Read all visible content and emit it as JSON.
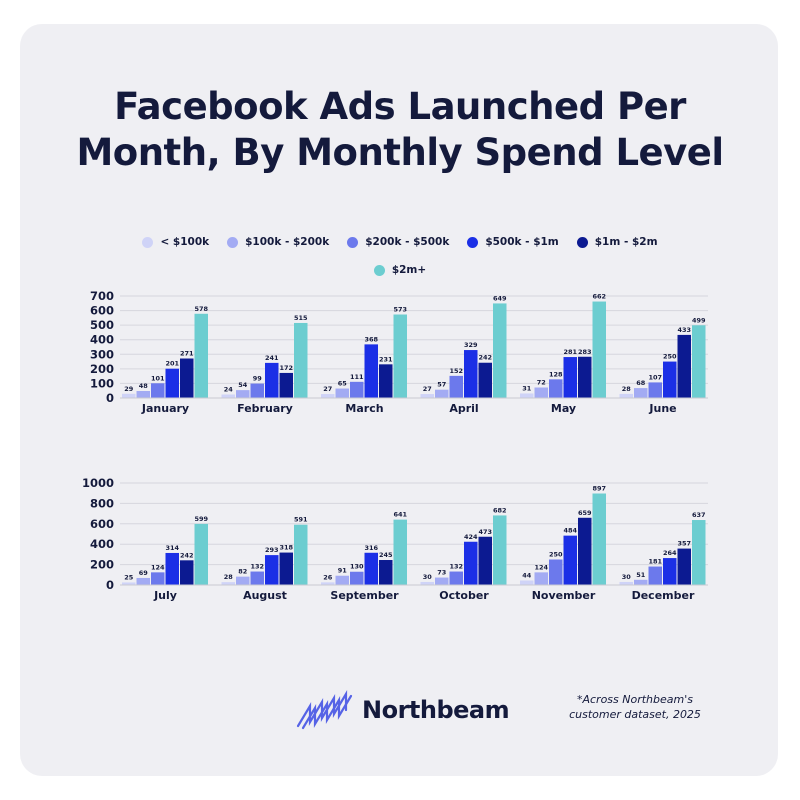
{
  "title_line1": "Facebook Ads Launched Per",
  "title_line2": "Month, By Monthly Spend Level",
  "brand": "Northbeam",
  "footnote_line1": "*Across Northbeam's",
  "footnote_line2": "customer dataset, 2025",
  "chart_data": [
    {
      "type": "bar",
      "title": "Facebook Ads Launched Per Month, By Monthly Spend Level",
      "categories": [
        "January",
        "February",
        "March",
        "April",
        "May",
        "June"
      ],
      "ylim": [
        0,
        700
      ],
      "yticks": [
        0,
        100,
        200,
        300,
        400,
        500,
        600,
        700
      ],
      "grid": true,
      "legend_position": "top-center",
      "series": [
        {
          "name": "< $100k",
          "color": "#cfd3f7",
          "values": [
            29,
            24,
            27,
            27,
            31,
            28
          ]
        },
        {
          "name": "$100k - $200k",
          "color": "#a3abf3",
          "values": [
            48,
            54,
            65,
            57,
            72,
            68
          ]
        },
        {
          "name": "$200k - $500k",
          "color": "#6c79ec",
          "values": [
            101,
            99,
            111,
            152,
            128,
            107
          ]
        },
        {
          "name": "$500k - $1m",
          "color": "#1b2fe6",
          "values": [
            201,
            241,
            368,
            329,
            281,
            250
          ]
        },
        {
          "name": "$1m - $2m",
          "color": "#0c1a91",
          "values": [
            271,
            172,
            231,
            242,
            283,
            433
          ]
        },
        {
          "name": "$2m+",
          "color": "#6ccdd0",
          "values": [
            578,
            515,
            573,
            649,
            662,
            499
          ]
        }
      ]
    },
    {
      "type": "bar",
      "categories": [
        "July",
        "August",
        "September",
        "October",
        "November",
        "December"
      ],
      "ylim": [
        0,
        1000
      ],
      "yticks": [
        0,
        200,
        400,
        600,
        800,
        1000
      ],
      "grid": true,
      "series": [
        {
          "name": "< $100k",
          "color": "#cfd3f7",
          "values": [
            25,
            28,
            26,
            30,
            44,
            30
          ]
        },
        {
          "name": "$100k - $200k",
          "color": "#a3abf3",
          "values": [
            69,
            82,
            91,
            73,
            124,
            51
          ]
        },
        {
          "name": "$200k - $500k",
          "color": "#6c79ec",
          "values": [
            124,
            132,
            130,
            132,
            250,
            181
          ]
        },
        {
          "name": "$500k - $1m",
          "color": "#1b2fe6",
          "values": [
            314,
            293,
            316,
            424,
            484,
            264
          ]
        },
        {
          "name": "$1m - $2m",
          "color": "#0c1a91",
          "values": [
            242,
            318,
            245,
            473,
            659,
            357
          ]
        },
        {
          "name": "$2m+",
          "color": "#6ccdd0",
          "values": [
            599,
            591,
            641,
            682,
            897,
            637
          ]
        }
      ]
    }
  ]
}
